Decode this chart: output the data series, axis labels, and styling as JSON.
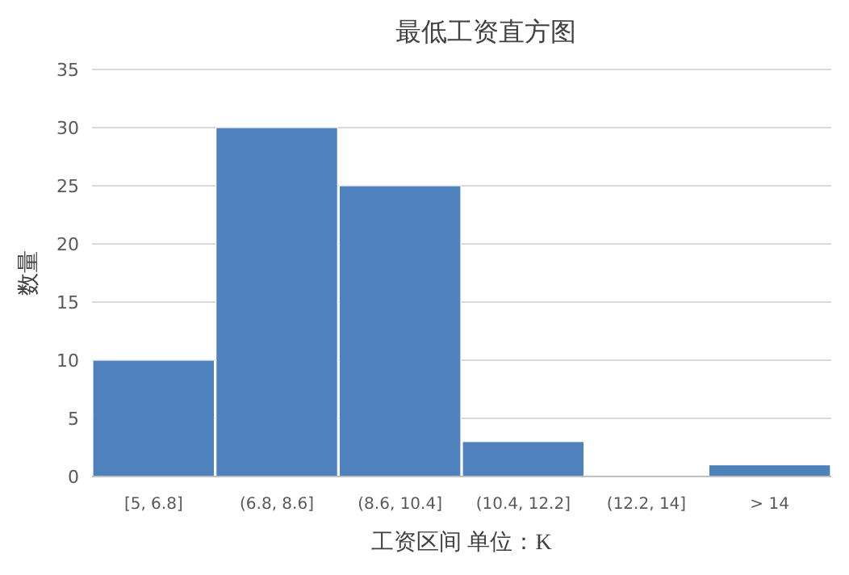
{
  "chart_data": {
    "type": "bar",
    "title": "最低工资直方图",
    "xlabel": "工资区间 单位：K",
    "ylabel": "数量",
    "categories": [
      "[5, 6.8]",
      "(6.8, 8.6]",
      "(8.6, 10.4]",
      "(10.4, 12.2]",
      "(12.2, 14]",
      "> 14"
    ],
    "values": [
      10,
      30,
      25,
      3,
      0,
      1
    ],
    "color": "#4f81bd",
    "ylim": [
      0,
      35
    ],
    "yticks": [
      0,
      5,
      10,
      15,
      20,
      25,
      30,
      35
    ],
    "grid": "y"
  }
}
